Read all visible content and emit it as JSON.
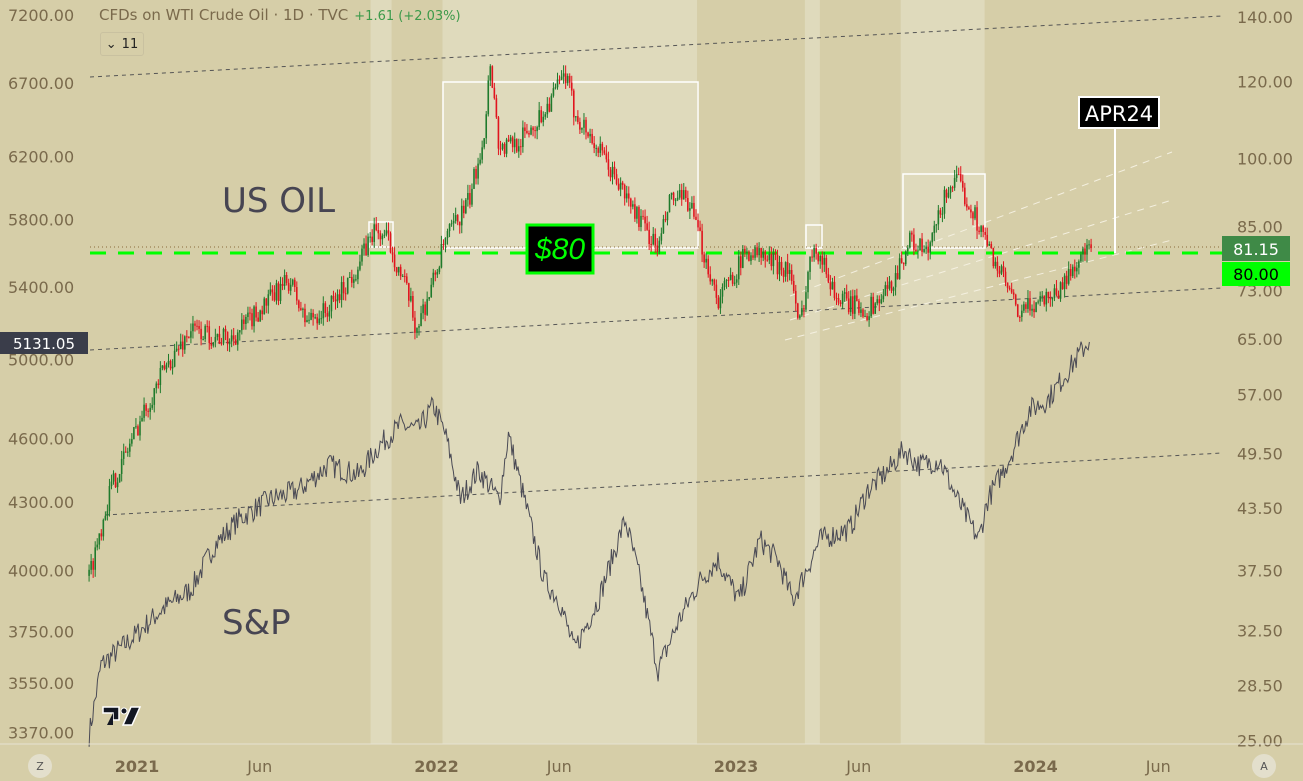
{
  "header": {
    "title": "CFDs on WTI Crude Oil · 1D · TVC",
    "change": "+1.61 (+2.03%)",
    "collapse_label": "11",
    "collapse_icon": "chevron-down-icon"
  },
  "annotations": {
    "oil_label": "US OIL",
    "sp_label": "S&P",
    "price_80_label": "$80",
    "apr24_label": "APR24"
  },
  "axis_buttons": {
    "left": "Z",
    "right": "A"
  },
  "colors": {
    "background": "#d6cea8",
    "band": "#dfdabc",
    "up": "#1f7a2c",
    "down": "#e0141e",
    "level80": "#00ff00",
    "last_price": "#3f8a47"
  },
  "chart_data": [
    {
      "type": "candlestick",
      "title": "CFDs on WTI Crude Oil · 1D · TVC",
      "axis": "right",
      "scale": "log",
      "y_ticks": [
        "140.00",
        "120.00",
        "100.00",
        "85.00",
        "73.00",
        "65.00",
        "57.00",
        "49.50",
        "43.50",
        "37.50",
        "32.50",
        "28.50",
        "25.00"
      ],
      "y_tick_values": [
        140,
        120,
        100,
        85,
        73,
        65,
        57,
        49.5,
        43.5,
        37.5,
        32.5,
        28.5,
        25
      ],
      "last_price": "81.15",
      "level_label": "80.00",
      "ylim": [
        25,
        140
      ],
      "series": [
        [
          2020.84,
          37.0
        ],
        [
          2020.91,
          45.4
        ],
        [
          2021.01,
          53.6
        ],
        [
          2021.09,
          60.4
        ],
        [
          2021.18,
          66.5
        ],
        [
          2021.31,
          64.9
        ],
        [
          2021.41,
          69.7
        ],
        [
          2021.51,
          74.9
        ],
        [
          2021.56,
          68.0
        ],
        [
          2021.64,
          69.7
        ],
        [
          2021.74,
          77.6
        ],
        [
          2021.79,
          84.3
        ],
        [
          2021.84,
          82.3
        ],
        [
          2021.91,
          71.4
        ],
        [
          2021.93,
          66.5
        ],
        [
          2021.98,
          73.1
        ],
        [
          2022.03,
          82.3
        ],
        [
          2022.11,
          90.5
        ],
        [
          2022.16,
          107
        ],
        [
          2022.18,
          126.4
        ],
        [
          2022.21,
          102
        ],
        [
          2022.28,
          104.5
        ],
        [
          2022.34,
          109.6
        ],
        [
          2022.43,
          122
        ],
        [
          2022.46,
          112
        ],
        [
          2022.54,
          102
        ],
        [
          2022.64,
          90.5
        ],
        [
          2022.74,
          80.4
        ],
        [
          2022.78,
          90.5
        ],
        [
          2022.84,
          90.5
        ],
        [
          2022.88,
          82.3
        ],
        [
          2022.94,
          71.4
        ],
        [
          2023.04,
          80.4
        ],
        [
          2023.11,
          78.5
        ],
        [
          2023.18,
          76.7
        ],
        [
          2023.21,
          66.5
        ],
        [
          2023.26,
          82.3
        ],
        [
          2023.34,
          71.4
        ],
        [
          2023.44,
          69.7
        ],
        [
          2023.51,
          73.1
        ],
        [
          2023.58,
          82.3
        ],
        [
          2023.64,
          79.5
        ],
        [
          2023.71,
          93.8
        ],
        [
          2023.74,
          94.5
        ],
        [
          2023.79,
          88.4
        ],
        [
          2023.84,
          81.3
        ],
        [
          2023.91,
          73.1
        ],
        [
          2023.94,
          68.8
        ],
        [
          2024.01,
          71.4
        ],
        [
          2024.08,
          73.1
        ],
        [
          2024.14,
          78.5
        ],
        [
          2024.19,
          81.15
        ]
      ]
    },
    {
      "type": "line",
      "title": "S&P",
      "axis": "left",
      "scale": "log",
      "y_ticks": [
        "7200.00",
        "6700.00",
        "6200.00",
        "5800.00",
        "5400.00",
        "5000.00",
        "4600.00",
        "4300.00",
        "4000.00",
        "3750.00",
        "3550.00",
        "3370.00"
      ],
      "y_tick_values": [
        7200,
        6700,
        6200,
        5800,
        5400,
        5000,
        4600,
        4300,
        4000,
        3750,
        3550,
        3370
      ],
      "last_price": "5131.05",
      "ylim": [
        3370,
        7200
      ],
      "series": [
        [
          2020.84,
          3361
        ],
        [
          2020.88,
          3620
        ],
        [
          2020.98,
          3718
        ],
        [
          2021.08,
          3835
        ],
        [
          2021.18,
          3920
        ],
        [
          2021.26,
          4110
        ],
        [
          2021.34,
          4222
        ],
        [
          2021.44,
          4310
        ],
        [
          2021.54,
          4355
        ],
        [
          2021.64,
          4473
        ],
        [
          2021.74,
          4425
        ],
        [
          2021.81,
          4567
        ],
        [
          2021.88,
          4665
        ],
        [
          2021.94,
          4641
        ],
        [
          2021.99,
          4763
        ],
        [
          2022.03,
          4618
        ],
        [
          2022.08,
          4310
        ],
        [
          2022.14,
          4449
        ],
        [
          2022.21,
          4310
        ],
        [
          2022.24,
          4618
        ],
        [
          2022.31,
          4222
        ],
        [
          2022.36,
          3958
        ],
        [
          2022.41,
          3876
        ],
        [
          2022.46,
          3677
        ],
        [
          2022.54,
          3876
        ],
        [
          2022.63,
          4222
        ],
        [
          2022.68,
          3958
        ],
        [
          2022.74,
          3600
        ],
        [
          2022.81,
          3796
        ],
        [
          2022.88,
          3958
        ],
        [
          2022.94,
          4043
        ],
        [
          2023.01,
          3876
        ],
        [
          2023.08,
          4132
        ],
        [
          2023.14,
          4043
        ],
        [
          2023.19,
          3876
        ],
        [
          2023.28,
          4132
        ],
        [
          2023.38,
          4180
        ],
        [
          2023.44,
          4355
        ],
        [
          2023.51,
          4449
        ],
        [
          2023.56,
          4545
        ],
        [
          2023.61,
          4473
        ],
        [
          2023.68,
          4495
        ],
        [
          2023.74,
          4310
        ],
        [
          2023.81,
          4132
        ],
        [
          2023.84,
          4310
        ],
        [
          2023.91,
          4495
        ],
        [
          2023.98,
          4740
        ],
        [
          2024.04,
          4790
        ],
        [
          2024.11,
          4944
        ],
        [
          2024.18,
          5106
        ]
      ]
    }
  ],
  "time_axis": {
    "labels": [
      {
        "text": "2021",
        "t": 2021.0,
        "year": true
      },
      {
        "text": "Jun",
        "t": 2021.41,
        "year": false
      },
      {
        "text": "2022",
        "t": 2022.0,
        "year": true
      },
      {
        "text": "Jun",
        "t": 2022.41,
        "year": false
      },
      {
        "text": "2023",
        "t": 2023.0,
        "year": true
      },
      {
        "text": "Jun",
        "t": 2023.41,
        "year": false
      },
      {
        "text": "2024",
        "t": 2024.0,
        "year": true
      },
      {
        "text": "Jun",
        "t": 2024.41,
        "year": false
      }
    ]
  },
  "bands": [
    [
      2021.78,
      2021.85
    ],
    [
      2022.02,
      2022.87
    ],
    [
      2023.23,
      2023.28
    ],
    [
      2023.55,
      2023.83
    ]
  ]
}
